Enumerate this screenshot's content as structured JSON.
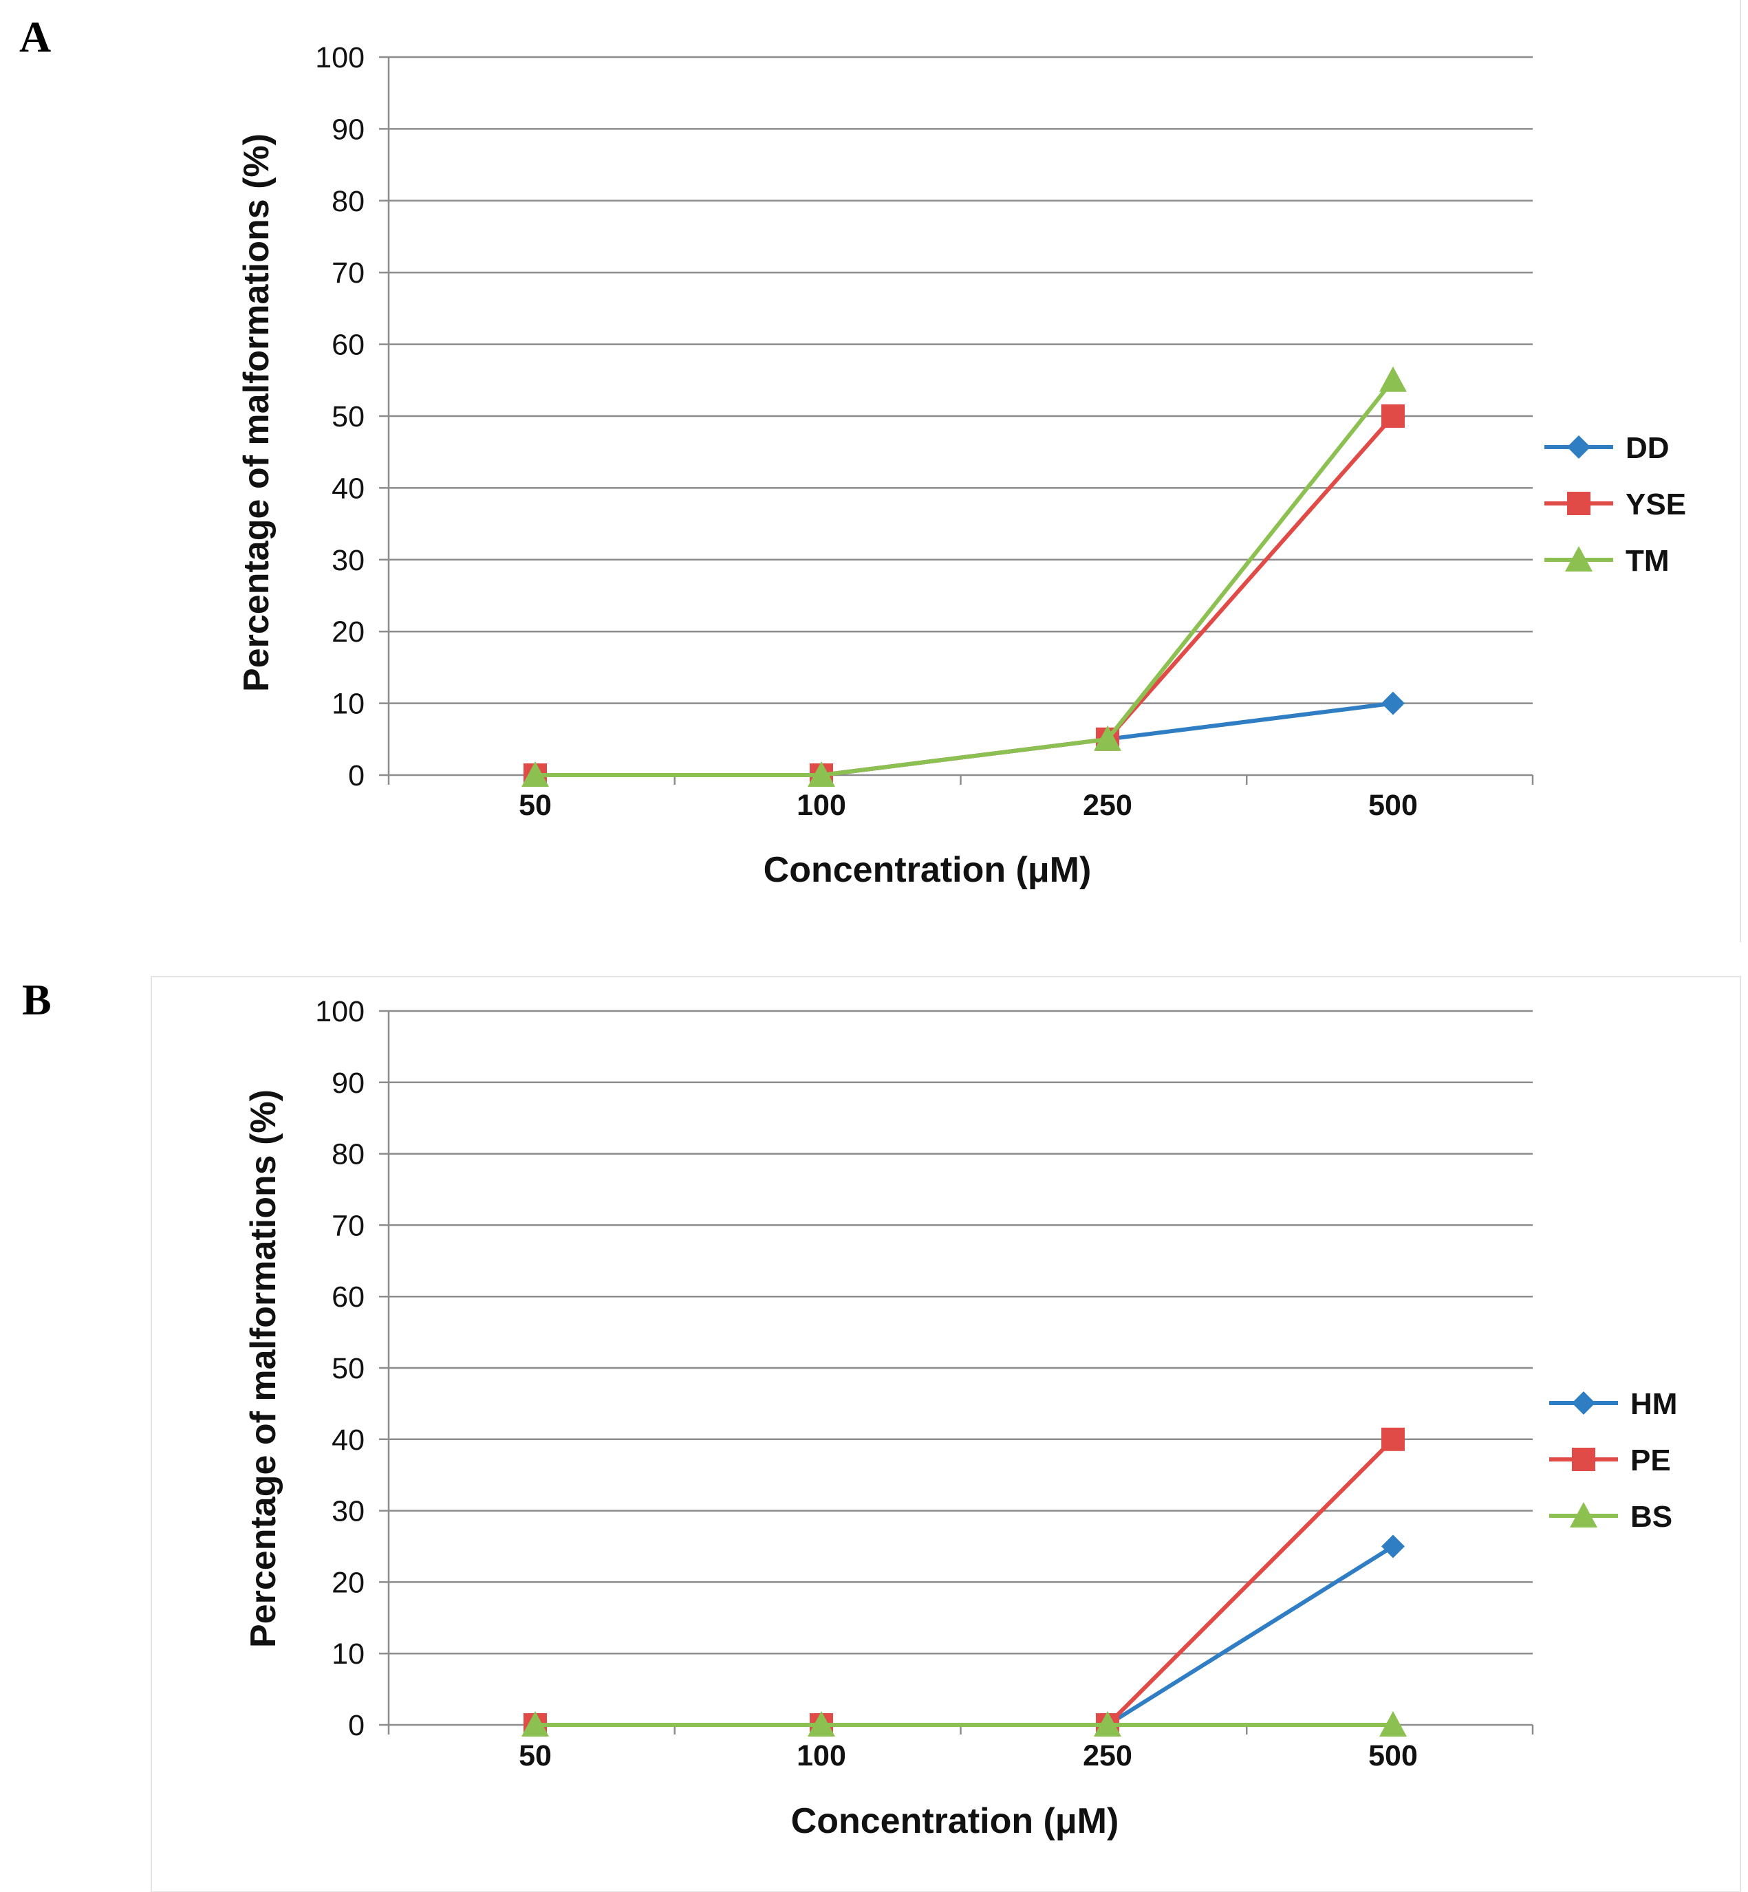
{
  "chart_data": [
    {
      "type": "line",
      "panel_label": "A",
      "title": "",
      "xlabel": "Concentration (μM)",
      "ylabel": "Percentage of malformations (%)",
      "categories": [
        "50",
        "100",
        "250",
        "500"
      ],
      "ylim": [
        0,
        100
      ],
      "yticks": [
        "0",
        "10",
        "20",
        "30",
        "40",
        "50",
        "60",
        "70",
        "80",
        "90",
        "100"
      ],
      "grid": true,
      "legend_position": "right",
      "series": [
        {
          "name": "DD",
          "marker": "diamond",
          "color": "#2f7ec3",
          "values": [
            0,
            0,
            5,
            10
          ]
        },
        {
          "name": "YSE",
          "marker": "square",
          "color": "#e04b48",
          "values": [
            0,
            0,
            5,
            50
          ]
        },
        {
          "name": "TM",
          "marker": "triangle",
          "color": "#8cc152",
          "values": [
            0,
            0,
            5,
            55
          ]
        }
      ]
    },
    {
      "type": "line",
      "panel_label": "B",
      "title": "",
      "xlabel": "Concentration (μM)",
      "ylabel": "Percentage of malformations (%)",
      "categories": [
        "50",
        "100",
        "250",
        "500"
      ],
      "ylim": [
        0,
        100
      ],
      "yticks": [
        "0",
        "10",
        "20",
        "30",
        "40",
        "50",
        "60",
        "70",
        "80",
        "90",
        "100"
      ],
      "grid": true,
      "legend_position": "right",
      "series": [
        {
          "name": "HM",
          "marker": "diamond",
          "color": "#2f7ec3",
          "values": [
            0,
            0,
            0,
            25
          ]
        },
        {
          "name": "PE",
          "marker": "square",
          "color": "#e04b48",
          "values": [
            0,
            0,
            0,
            40
          ]
        },
        {
          "name": "BS",
          "marker": "triangle",
          "color": "#8cc152",
          "values": [
            0,
            0,
            0,
            0
          ]
        }
      ]
    }
  ]
}
